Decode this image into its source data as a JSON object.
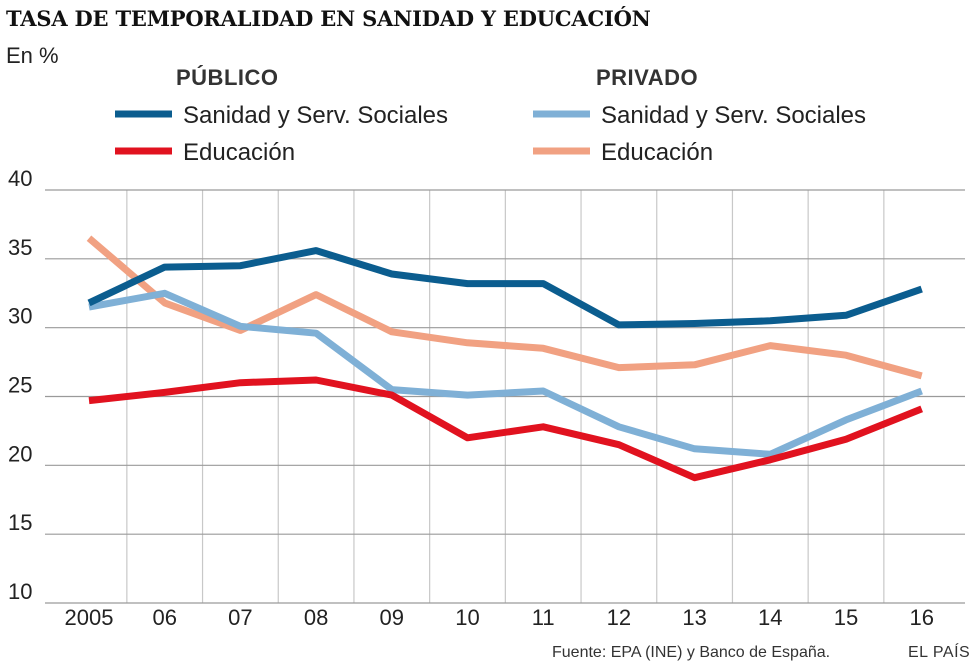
{
  "chart_data": {
    "type": "line",
    "title": "TASA DE TEMPORALIDAD EN SANIDAD Y EDUCACIÓN",
    "ylabel": "En %",
    "ylim": [
      10,
      40
    ],
    "yticks": [
      10,
      15,
      20,
      25,
      30,
      35,
      40
    ],
    "categories": [
      "2005",
      "06",
      "07",
      "08",
      "09",
      "10",
      "11",
      "12",
      "13",
      "14",
      "15",
      "16"
    ],
    "legend_groups": [
      "PÚBLICO",
      "PRIVADO"
    ],
    "series": [
      {
        "name": "Sanidad y Serv. Sociales",
        "group": "PÚBLICO",
        "color": "#0b5d8f",
        "values": [
          31.8,
          34.4,
          34.5,
          35.6,
          33.9,
          33.2,
          33.2,
          30.2,
          30.3,
          30.5,
          30.9,
          32.8
        ]
      },
      {
        "name": "Educación",
        "group": "PÚBLICO",
        "color": "#e1121f",
        "values": [
          24.7,
          25.3,
          26.0,
          26.2,
          25.1,
          22.0,
          22.8,
          21.5,
          19.1,
          20.4,
          21.9,
          24.1
        ]
      },
      {
        "name": "Sanidad y Serv. Sociales",
        "group": "PRIVADO",
        "color": "#7fb0d6",
        "values": [
          31.5,
          32.5,
          30.1,
          29.6,
          25.5,
          25.1,
          25.4,
          22.8,
          21.2,
          20.8,
          23.3,
          25.4
        ]
      },
      {
        "name": "Educación",
        "group": "PRIVADO",
        "color": "#f1a182",
        "values": [
          36.5,
          31.8,
          29.8,
          32.4,
          29.7,
          28.9,
          28.5,
          27.1,
          27.3,
          28.7,
          28.0,
          26.5
        ]
      }
    ]
  },
  "footer": {
    "source": "Fuente: EPA (INE) y Banco de España.",
    "brand": "EL PAÍS"
  },
  "colors": {
    "grid_horizontal": "#9a9a9a",
    "grid_vertical": "#c8c8c8"
  }
}
